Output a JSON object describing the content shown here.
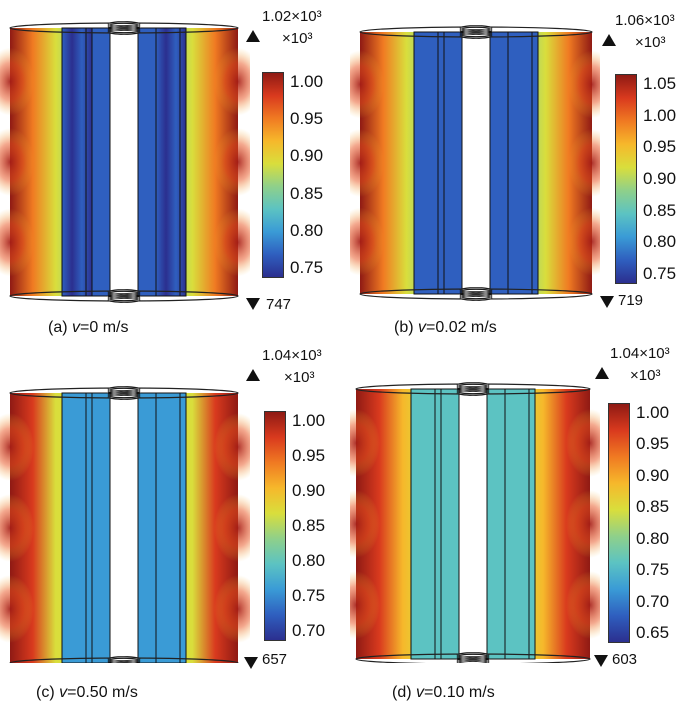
{
  "colormap": [
    "#2b2f8f",
    "#2f5fbf",
    "#3a9bd6",
    "#5cc3c2",
    "#8fd08a",
    "#d9de3c",
    "#f6b82b",
    "#f07a22",
    "#d93a1e",
    "#8f1a14"
  ],
  "panels": [
    {
      "id": "a",
      "caption_prefix": "(a) ",
      "caption_var": "v",
      "caption_suffix": "=0 m/s",
      "max_label": "1.02×10³",
      "unit_label": "×10³",
      "min_label": "747",
      "ticks": [
        "1.00",
        "0.95",
        "0.90",
        "0.85",
        "0.80",
        "0.75"
      ],
      "core_level": 0.05,
      "outer_level": 0.55
    },
    {
      "id": "b",
      "caption_prefix": "(b) ",
      "caption_var": "v",
      "caption_suffix": "=0.02 m/s",
      "max_label": "1.06×10³",
      "unit_label": "×10³",
      "min_label": "719",
      "ticks": [
        "1.05",
        "1.00",
        "0.95",
        "0.90",
        "0.85",
        "0.80",
        "0.75"
      ],
      "core_level": 0.08,
      "outer_level": 0.5
    },
    {
      "id": "c",
      "caption_prefix": "(c) ",
      "caption_var": "v",
      "caption_suffix": "=0.50 m/s",
      "max_label": "1.04×10³",
      "unit_label": "×10³",
      "min_label": "657",
      "ticks": [
        "1.00",
        "0.95",
        "0.90",
        "0.85",
        "0.80",
        "0.75",
        "0.70"
      ],
      "core_level": 0.2,
      "outer_level": 0.6
    },
    {
      "id": "d",
      "caption_prefix": "(d) ",
      "caption_var": "v",
      "caption_suffix": "=0.10 m/s",
      "max_label": "1.04×10³",
      "unit_label": "×10³",
      "min_label": "603",
      "ticks": [
        "1.00",
        "0.95",
        "0.90",
        "0.85",
        "0.80",
        "0.75",
        "0.70",
        "0.65"
      ],
      "core_level": 0.3,
      "outer_level": 0.62
    }
  ]
}
